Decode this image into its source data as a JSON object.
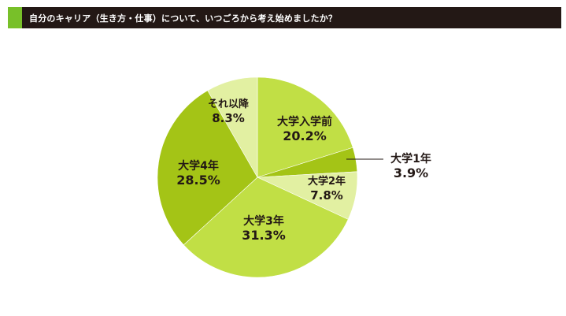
{
  "header": {
    "title": "自分のキャリア（生き方・仕事）について、いつごろから考え始めましたか？",
    "accent_color": "#78c029",
    "bar_color": "#231815"
  },
  "chart_data": {
    "type": "pie",
    "title": "自分のキャリア（生き方・仕事）について、いつごろから考え始めましたか？",
    "start_angle_deg": 0,
    "direction": "clockwise",
    "slices": [
      {
        "label": "大学入学前",
        "value": 20.2,
        "value_label": "20.2%",
        "color": "#c1df45"
      },
      {
        "label": "大学1年",
        "value": 3.9,
        "value_label": "3.9%",
        "color": "#a4c416"
      },
      {
        "label": "大学2年",
        "value": 7.8,
        "value_label": "7.8%",
        "color": "#e2f0a2"
      },
      {
        "label": "大学3年",
        "value": 31.3,
        "value_label": "31.3%",
        "color": "#c1df45"
      },
      {
        "label": "大学4年",
        "value": 28.5,
        "value_label": "28.5%",
        "color": "#a4c416"
      },
      {
        "label": "それ以降",
        "value": 8.3,
        "value_label": "8.3%",
        "color": "#e2f0a2"
      }
    ]
  }
}
